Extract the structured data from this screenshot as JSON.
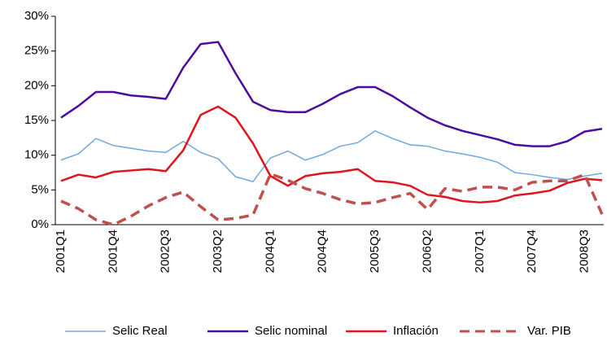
{
  "chart_data": {
    "type": "line",
    "categories": [
      "2001Q1",
      null,
      null,
      "2001Q4",
      null,
      null,
      "2002Q3",
      null,
      null,
      "2003Q2",
      null,
      null,
      "2004Q1",
      null,
      null,
      "2004Q4",
      null,
      null,
      "2005Q3",
      null,
      null,
      "2006Q2",
      null,
      null,
      "2007Q1",
      null,
      null,
      "2007Q4",
      null,
      null,
      "2008Q3",
      null
    ],
    "series": [
      {
        "name": "Selic Real",
        "color": "#6fa8e0",
        "dashed": false,
        "values": [
          9.3,
          10.2,
          12.4,
          11.4,
          11.0,
          10.6,
          10.4,
          12.0,
          10.4,
          9.5,
          6.9,
          6.2,
          9.6,
          10.6,
          9.3,
          10.1,
          11.3,
          11.8,
          13.5,
          12.4,
          11.5,
          11.3,
          10.6,
          10.2,
          9.7,
          9.0,
          7.5,
          7.2,
          6.8,
          6.5,
          7.0,
          7.4
        ]
      },
      {
        "name": "Selic nominal",
        "color": "#4b0ca0",
        "dashed": false,
        "values": [
          15.4,
          17.1,
          19.1,
          19.1,
          18.6,
          18.4,
          18.1,
          22.6,
          26.0,
          26.3,
          21.8,
          17.7,
          16.5,
          16.2,
          16.2,
          17.4,
          18.8,
          19.8,
          19.8,
          18.5,
          16.9,
          15.4,
          14.3,
          13.5,
          12.9,
          12.3,
          11.5,
          11.3,
          11.3,
          12.0,
          13.4,
          13.8
        ]
      },
      {
        "name": "Inflación",
        "color": "#e0141c",
        "dashed": false,
        "values": [
          6.3,
          7.2,
          6.8,
          7.6,
          7.8,
          8.0,
          7.7,
          10.7,
          15.8,
          17.0,
          15.4,
          11.7,
          7.0,
          5.6,
          7.0,
          7.4,
          7.6,
          8.0,
          6.3,
          6.1,
          5.6,
          4.3,
          4.0,
          3.4,
          3.2,
          3.4,
          4.2,
          4.5,
          4.9,
          6.0,
          6.6,
          6.4
        ]
      },
      {
        "name": "Var. PIB",
        "color": "#c0504d",
        "dashed": true,
        "values": [
          3.4,
          2.3,
          0.7,
          0.0,
          1.2,
          2.7,
          3.9,
          4.7,
          2.6,
          0.7,
          0.9,
          1.4,
          7.3,
          6.4,
          5.2,
          4.5,
          3.6,
          3.0,
          3.2,
          3.9,
          4.5,
          2.2,
          5.2,
          4.8,
          5.4,
          5.4,
          5.0,
          6.1,
          6.3,
          6.3,
          7.2,
          1.5
        ]
      }
    ],
    "ylim": [
      0,
      30
    ],
    "yticks": [
      {
        "value": 0,
        "label": "0%"
      },
      {
        "value": 5,
        "label": "5%"
      },
      {
        "value": 10,
        "label": "10%"
      },
      {
        "value": 15,
        "label": "15%"
      },
      {
        "value": 20,
        "label": "20%"
      },
      {
        "value": 25,
        "label": "25%"
      },
      {
        "value": 30,
        "label": "30%"
      }
    ],
    "grid": false,
    "legend": "bottom"
  }
}
